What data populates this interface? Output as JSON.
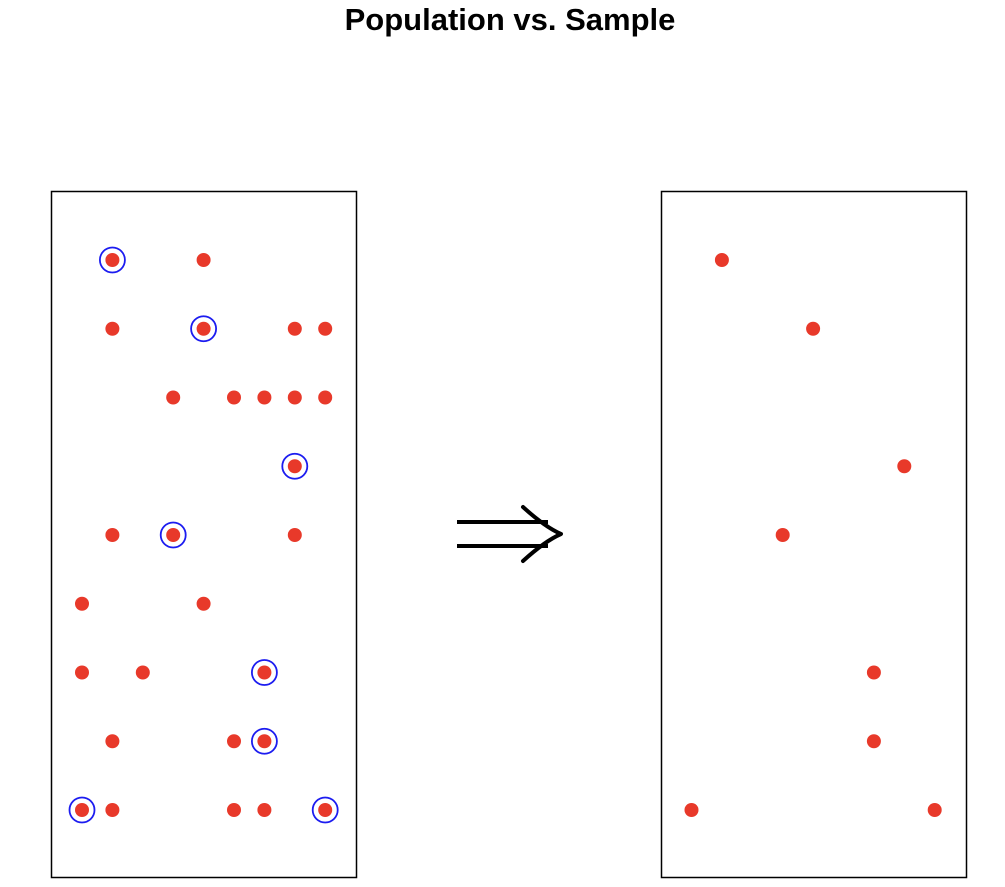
{
  "title": "Population vs. Sample",
  "colors": {
    "point": "#e8392a",
    "circle": "#1c1cf0",
    "frame": "#000000",
    "arrow": "#000000"
  },
  "arrow_icon": "implies-arrow-icon",
  "population": {
    "points": [
      {
        "col": 2,
        "row": 1,
        "sampled": true
      },
      {
        "col": 5,
        "row": 1,
        "sampled": false
      },
      {
        "col": 2,
        "row": 2,
        "sampled": false
      },
      {
        "col": 5,
        "row": 2,
        "sampled": true
      },
      {
        "col": 8,
        "row": 2,
        "sampled": false
      },
      {
        "col": 9,
        "row": 2,
        "sampled": false
      },
      {
        "col": 4,
        "row": 3,
        "sampled": false
      },
      {
        "col": 6,
        "row": 3,
        "sampled": false
      },
      {
        "col": 7,
        "row": 3,
        "sampled": false
      },
      {
        "col": 8,
        "row": 3,
        "sampled": false
      },
      {
        "col": 9,
        "row": 3,
        "sampled": false
      },
      {
        "col": 8,
        "row": 4,
        "sampled": true
      },
      {
        "col": 2,
        "row": 5,
        "sampled": false
      },
      {
        "col": 4,
        "row": 5,
        "sampled": true
      },
      {
        "col": 8,
        "row": 5,
        "sampled": false
      },
      {
        "col": 1,
        "row": 6,
        "sampled": false
      },
      {
        "col": 5,
        "row": 6,
        "sampled": false
      },
      {
        "col": 1,
        "row": 7,
        "sampled": false
      },
      {
        "col": 3,
        "row": 7,
        "sampled": false
      },
      {
        "col": 7,
        "row": 7,
        "sampled": true
      },
      {
        "col": 2,
        "row": 8,
        "sampled": false
      },
      {
        "col": 6,
        "row": 8,
        "sampled": false
      },
      {
        "col": 7,
        "row": 8,
        "sampled": true
      },
      {
        "col": 1,
        "row": 9,
        "sampled": true
      },
      {
        "col": 2,
        "row": 9,
        "sampled": false
      },
      {
        "col": 6,
        "row": 9,
        "sampled": false
      },
      {
        "col": 7,
        "row": 9,
        "sampled": false
      },
      {
        "col": 9,
        "row": 9,
        "sampled": true
      }
    ]
  },
  "sample": {
    "points": [
      {
        "col": 2,
        "row": 1
      },
      {
        "col": 5,
        "row": 2
      },
      {
        "col": 8,
        "row": 4
      },
      {
        "col": 4,
        "row": 5
      },
      {
        "col": 7,
        "row": 7
      },
      {
        "col": 7,
        "row": 8
      },
      {
        "col": 1,
        "row": 9
      },
      {
        "col": 9,
        "row": 9
      }
    ]
  }
}
